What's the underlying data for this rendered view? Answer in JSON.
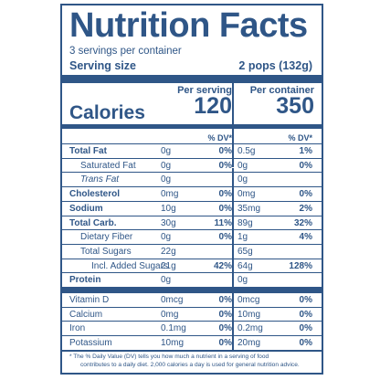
{
  "title": "Nutrition Facts",
  "servings_per_container": "3 servings per container",
  "serving_size_label": "Serving size",
  "serving_size_value": "2 pops (132g)",
  "col1_header": "Per serving",
  "col2_header": "Per container",
  "calories_label": "Calories",
  "calories_serving": "120",
  "calories_container": "350",
  "dv_header": "% DV*",
  "nutrients": [
    {
      "name": "Total Fat",
      "amt1": "0g",
      "pct1": "0%",
      "amt2": "0.5g",
      "pct2": "1%"
    },
    {
      "name": "Saturated Fat",
      "amt1": "0g",
      "pct1": "0%",
      "amt2": "0g",
      "pct2": "0%"
    },
    {
      "name": "Trans Fat",
      "amt1": "0g",
      "pct1": "",
      "amt2": "0g",
      "pct2": ""
    },
    {
      "name": "Cholesterol",
      "amt1": "0mg",
      "pct1": "0%",
      "amt2": "0mg",
      "pct2": "0%"
    },
    {
      "name": "Sodium",
      "amt1": "10g",
      "pct1": "0%",
      "amt2": "35mg",
      "pct2": "2%"
    },
    {
      "name": "Total Carb.",
      "amt1": "30g",
      "pct1": "11%",
      "amt2": "89g",
      "pct2": "32%"
    },
    {
      "name": "Dietary Fiber",
      "amt1": "0g",
      "pct1": "0%",
      "amt2": "1g",
      "pct2": "4%"
    },
    {
      "name": "Total Sugars",
      "amt1": "22g",
      "pct1": "",
      "amt2": "65g",
      "pct2": ""
    },
    {
      "name": "Incl. Added Sugars",
      "amt1": "21g",
      "pct1": "42%",
      "amt2": "64g",
      "pct2": "128%"
    },
    {
      "name": "Protein",
      "amt1": "0g",
      "pct1": "",
      "amt2": "0g",
      "pct2": ""
    }
  ],
  "vitamins": [
    {
      "name": "Vitamin D",
      "amt1": "0mcg",
      "pct1": "0%",
      "amt2": "0mcg",
      "pct2": "0%"
    },
    {
      "name": "Calcium",
      "amt1": "0mg",
      "pct1": "0%",
      "amt2": "10mg",
      "pct2": "0%"
    },
    {
      "name": "Iron",
      "amt1": "0.1mg",
      "pct1": "0%",
      "amt2": "0.2mg",
      "pct2": "0%"
    },
    {
      "name": "Potassium",
      "amt1": "10mg",
      "pct1": "0%",
      "amt2": "20mg",
      "pct2": "0%"
    }
  ],
  "footnote_line1": "* The % Daily Value (DV) tells you how much a nutrient in a serving of food",
  "footnote_line2": "contributes to a daily diet. 2,000 calories a day is used for general nutrition advice."
}
